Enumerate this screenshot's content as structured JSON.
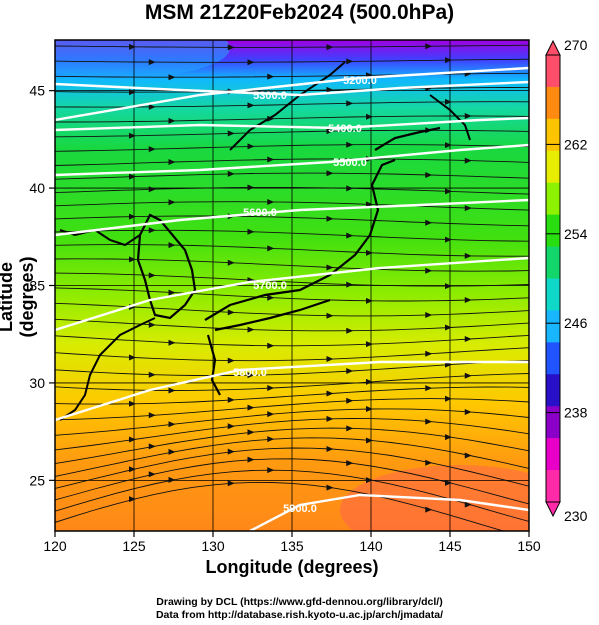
{
  "title": "MSM 21Z20Feb2024 (500.0hPa)",
  "xlabel": "Longitude (degrees)",
  "ylabel": "Latitude  (degrees)",
  "footer_line1": "Drawing by DCL (https://www.gfd-dennou.org/library/dcl/)",
  "footer_line2": "Data from http://database.rish.kyoto-u.ac.jp/arch/jmadata/",
  "map": {
    "lon_range": [
      120,
      150
    ],
    "lat_range": [
      22.4,
      47.6
    ],
    "lon_ticks": [
      "120",
      "125",
      "130",
      "135",
      "140",
      "145",
      "150"
    ],
    "lat_ticks": [
      "25",
      "30",
      "35",
      "40",
      "45"
    ],
    "colorbar": {
      "min": 230,
      "max": 270,
      "tick_labels": [
        "270",
        "262",
        "254",
        "246",
        "238",
        "230"
      ],
      "colors": [
        "#ff4e6a",
        "#ff8a12",
        "#ffc400",
        "#e8ec00",
        "#8cf200",
        "#28de10",
        "#12d66a",
        "#10d8c8",
        "#18b6ff",
        "#2054ff",
        "#2810c8",
        "#8a00c8",
        "#e800c8",
        "#ff2aa8"
      ]
    },
    "contour_labels": [
      "5200.0",
      "5300.0",
      "5400.0",
      "5500.0",
      "5600.0",
      "5700.0",
      "5800.0",
      "5900.0"
    ]
  }
}
